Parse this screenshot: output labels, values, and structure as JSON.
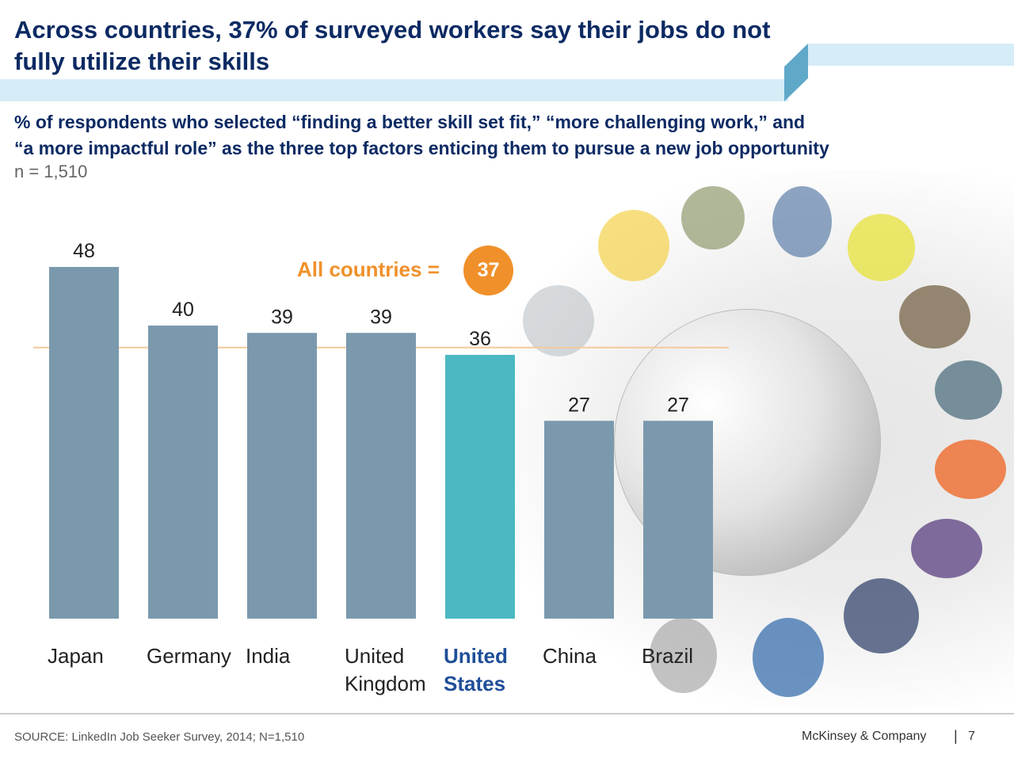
{
  "title": "Across countries, 37% of surveyed workers say their jobs do not fully utilize their skills",
  "subtitle_line1": "% of respondents who selected “finding a better skill set fit,” “more challenging work,” and",
  "subtitle_line2": "“a more impactful role” as the three top factors enticing them to pursue a new job opportunity",
  "sample_size": "n = 1,510",
  "average": {
    "label": "All countries =",
    "value": "37"
  },
  "footer": {
    "source": "SOURCE: LinkedIn Job Seeker Survey, 2014; N=1,510",
    "brand": "McKinsey & Company",
    "separator": "|",
    "page": "7"
  },
  "colors": {
    "bar": "#7b99ad",
    "highlight_bar": "#4bb8c2",
    "average": "#f0902a",
    "title": "#0c2a63"
  },
  "chart_data": {
    "type": "bar",
    "categories": [
      [
        "Japan"
      ],
      [
        "Germany"
      ],
      [
        "India"
      ],
      [
        "United",
        "Kingdom"
      ],
      [
        "United",
        "States"
      ],
      [
        "China"
      ],
      [
        "Brazil"
      ]
    ],
    "values": [
      48,
      40,
      39,
      39,
      36,
      27,
      27
    ],
    "highlight_index": 4,
    "reference_line": 37,
    "ylim": [
      0,
      48
    ],
    "grid": false,
    "legend": "none"
  }
}
